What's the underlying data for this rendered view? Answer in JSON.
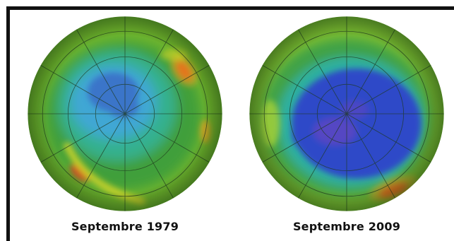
{
  "panels": [
    {
      "caption": "Septembre 1979",
      "colors": {
        "outer": "#6fb52d",
        "mid": "#3f9f3a",
        "ring": "#36b18f",
        "hole": "#3fa7d4",
        "core": "#3b74c9",
        "hotspot": "#e2371c"
      }
    },
    {
      "caption": "Septembre 2009",
      "colors": {
        "outer": "#79bb31",
        "mid": "#3fa247",
        "ring": "#2eb0a0",
        "hole": "#2e48c8",
        "core": "#5a47c2",
        "hotspot": "#e2371c"
      }
    }
  ]
}
